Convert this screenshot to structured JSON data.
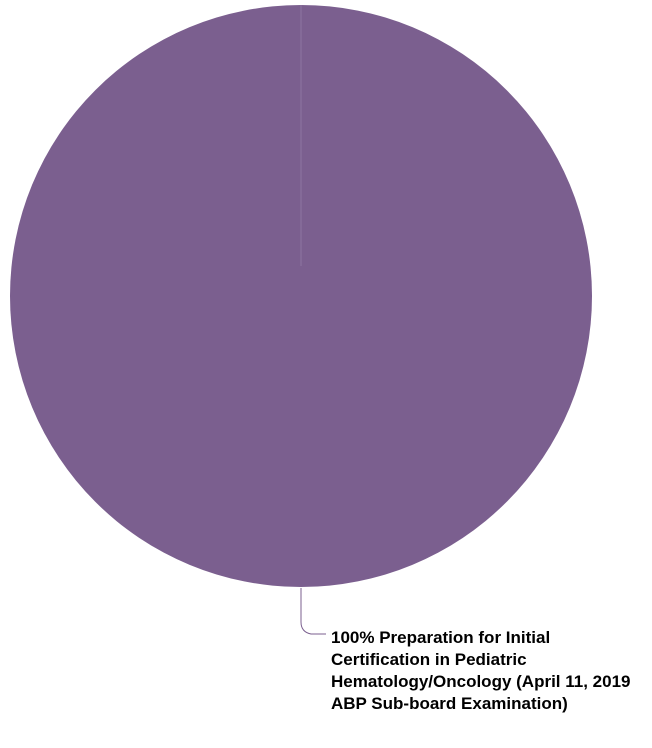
{
  "chart_data": {
    "type": "pie",
    "slices": [
      {
        "label": "Preparation for Initial Certification in Pediatric Hematology/Oncology (April 11, 2019 ABP Sub-board Examination)",
        "value": 100,
        "percent_label": "100%",
        "color": "#7b5f8f"
      }
    ],
    "data_label": "100% Preparation for Initial Certification in Pediatric Hematology/Oncology (April 11, 2019 ABP Sub-board Examination)",
    "legend": "none"
  }
}
